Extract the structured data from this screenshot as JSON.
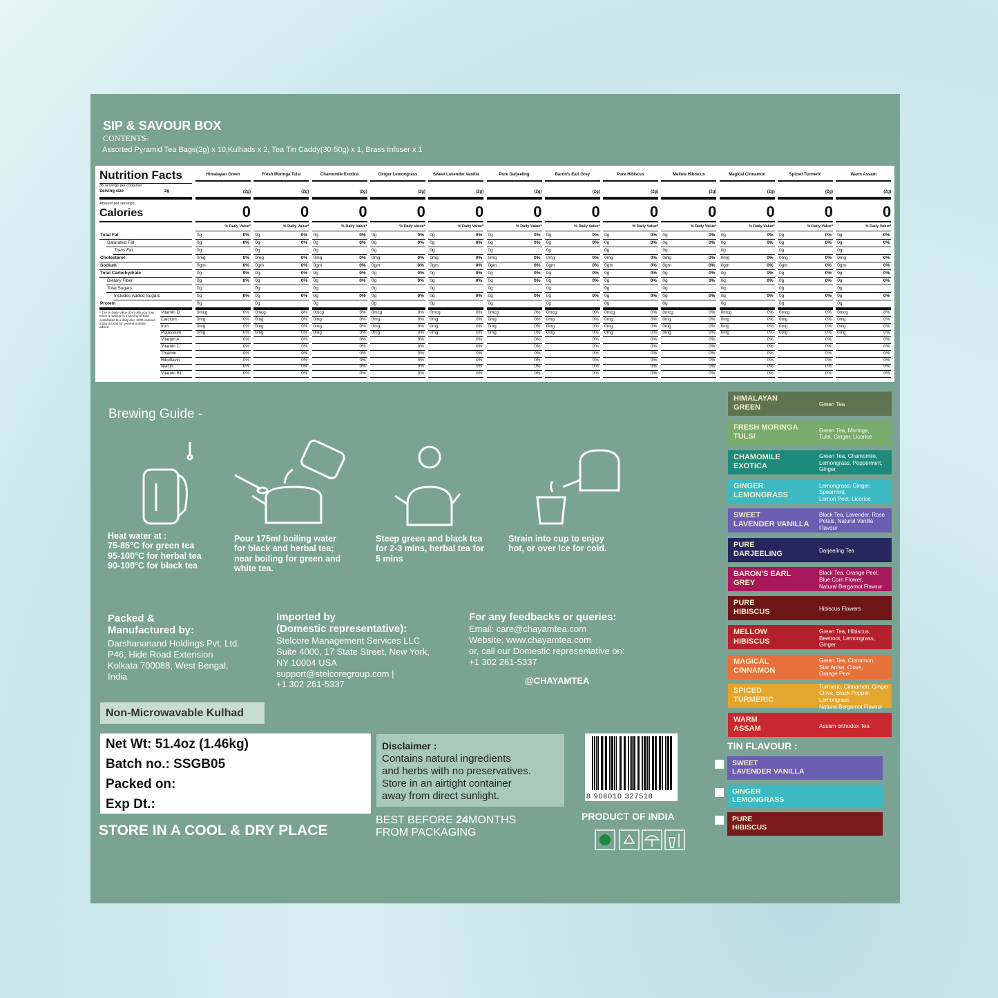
{
  "header": {
    "title": "SIP & SAVOUR BOX",
    "contents_label": "CONTENTS-",
    "contents": "Assorted Pyramid Tea Bags(2g) x 10,Kulhads x 2, Tea Tin Caddy(30-50g) x 1, Brass Infuser x 1"
  },
  "nutrition": {
    "title": "Nutrition Facts",
    "servings": "35 servings per container",
    "serving_size_label": "Serving size",
    "serving_size": "2g",
    "amount_label": "Amount per servings",
    "calories_label": "Calories",
    "dv_header": "% Daily Value*",
    "nutrients": [
      "Total Fat",
      "Saturated Fat",
      "Trans Fat",
      "Cholesterol",
      "Sodium",
      "Total Carbohydrate",
      "Dietary Fiber",
      "Total Sugars",
      "Includes Added Sugars",
      "Protein"
    ],
    "vitamins": [
      "Vitamin D",
      "Calcium",
      "Iron",
      "Potassium",
      "Vitamin A",
      "Vitamin C",
      "Thiamin",
      "Riboflavin",
      "Niacin",
      "Vitamin B1"
    ],
    "footnote": "* The % Daily Value (DV) tells you how much a nutrient in a serving of food contributes to a daily diet. 2000 calories a day is used for general nutrition advice.",
    "columns": [
      {
        "name": "Himalayan Green",
        "serving": "(2g)",
        "calories": 0,
        "amounts": [
          "0g",
          "0g",
          "0g",
          "0mg",
          "0gm",
          "0g",
          "0g",
          "0g",
          "0g",
          "0g"
        ],
        "dv": [
          "0%",
          "0%",
          null,
          "0%",
          "0%",
          "0%",
          "0%",
          null,
          "0%",
          null
        ],
        "vit_amounts": [
          "0mcg",
          "0mg",
          "0mg",
          "0mg",
          null,
          null,
          null,
          null,
          null,
          null
        ],
        "vit_dv": [
          "0%",
          "0%",
          "0%",
          "0%",
          "0%",
          "0%",
          "0%",
          "0%",
          "0%",
          "0%"
        ]
      },
      {
        "name": "Fresh Moringa Tulsi",
        "serving": "(2g)",
        "calories": 0,
        "amounts": [
          "0g",
          "0g",
          "0g",
          "0mg",
          "0gm",
          "0g",
          "0g",
          "0g",
          "0g",
          "0g"
        ],
        "dv": [
          "0%",
          "0%",
          null,
          "0%",
          "0%",
          "0%",
          "0%",
          null,
          "0%",
          null
        ],
        "vit_amounts": [
          "0mcg",
          "0mg",
          "0mg",
          "0mg",
          null,
          null,
          null,
          null,
          null,
          null
        ],
        "vit_dv": [
          "0%",
          "0%",
          "0%",
          "0%",
          "0%",
          "0%",
          "0%",
          "0%",
          "0%",
          "0%"
        ]
      },
      {
        "name": "Chamomile Exotica",
        "serving": "(2g)",
        "calories": 0,
        "amounts": [
          "0g",
          "0g",
          "0g",
          "0mg",
          "0gm",
          "0g",
          "0g",
          "0g",
          "0g",
          "0g"
        ],
        "dv": [
          "0%",
          "0%",
          null,
          "0%",
          "0%",
          "0%",
          "0%",
          null,
          "0%",
          null
        ],
        "vit_amounts": [
          "0mcg",
          "0mg",
          "0mg",
          "0mg",
          null,
          null,
          null,
          null,
          null,
          null
        ],
        "vit_dv": [
          "0%",
          "0%",
          "0%",
          "0%",
          "0%",
          "0%",
          "0%",
          "0%",
          "0%",
          "0%"
        ]
      },
      {
        "name": "Ginger Lemongrass",
        "serving": "(2g)",
        "calories": 0,
        "amounts": [
          "0g",
          "0g",
          "0g",
          "0mg",
          "0gm",
          "0g",
          "0g",
          "0g",
          "0g",
          "0g"
        ],
        "dv": [
          "0%",
          "0%",
          null,
          "0%",
          "0%",
          "0%",
          "0%",
          null,
          "0%",
          null
        ],
        "vit_amounts": [
          "0mcg",
          "0mg",
          "0mg",
          "0mg",
          null,
          null,
          null,
          null,
          null,
          null
        ],
        "vit_dv": [
          "0%",
          "0%",
          "0%",
          "0%",
          "0%",
          "0%",
          "0%",
          "0%",
          "0%",
          "0%"
        ]
      },
      {
        "name": "Sweet Lavender Vanilla",
        "serving": "(2g)",
        "calories": 0,
        "amounts": [
          "0g",
          "0g",
          "0g",
          "0mg",
          "0gm",
          "0g",
          "0g",
          "0g",
          "0g",
          "0g"
        ],
        "dv": [
          "0%",
          "0%",
          null,
          "0%",
          "0%",
          "0%",
          "0%",
          null,
          "0%",
          null
        ],
        "vit_amounts": [
          "0mcg",
          "0mg",
          "0mg",
          "0mg",
          null,
          null,
          null,
          null,
          null,
          null
        ],
        "vit_dv": [
          "0%",
          "0%",
          "0%",
          "0%",
          "0%",
          "0%",
          "0%",
          "0%",
          "0%",
          "0%"
        ]
      },
      {
        "name": "Pure Darjeeling",
        "serving": "(2g)",
        "calories": 0,
        "amounts": [
          "0g",
          "0g",
          "0g",
          "0mg",
          "0gm",
          "0g",
          "0g",
          "0g",
          "0g",
          "0g"
        ],
        "dv": [
          "0%",
          "0%",
          null,
          "0%",
          "0%",
          "0%",
          "0%",
          null,
          "0%",
          null
        ],
        "vit_amounts": [
          "0mcg",
          "0mg",
          "0mg",
          "0mg",
          null,
          null,
          null,
          null,
          null,
          null
        ],
        "vit_dv": [
          "0%",
          "0%",
          "0%",
          "0%",
          "0%",
          "0%",
          "0%",
          "0%",
          "0%",
          "0%"
        ]
      },
      {
        "name": "Baron's Earl Grey",
        "serving": "(2g)",
        "calories": 0,
        "amounts": [
          "0g",
          "0g",
          "0g",
          "0mg",
          "0gm",
          "0g",
          "0g",
          "0g",
          "0g",
          "0g"
        ],
        "dv": [
          "0%",
          "0%",
          null,
          "0%",
          "0%",
          "0%",
          "0%",
          null,
          "0%",
          null
        ],
        "vit_amounts": [
          "0mcg",
          "0mg",
          "0mg",
          "0mg",
          null,
          null,
          null,
          null,
          null,
          null
        ],
        "vit_dv": [
          "0%",
          "0%",
          "0%",
          "0%",
          "0%",
          "0%",
          "0%",
          "0%",
          "0%",
          "0%"
        ]
      },
      {
        "name": "Pure Hibiscus",
        "serving": "(2g)",
        "calories": 0,
        "amounts": [
          "0g",
          "0g",
          "0g",
          "0mg",
          "0gm",
          "0g",
          "0g",
          "0g",
          "0g",
          "0g"
        ],
        "dv": [
          "0%",
          "0%",
          null,
          "0%",
          "0%",
          "0%",
          "0%",
          null,
          "0%",
          null
        ],
        "vit_amounts": [
          "0mcg",
          "0mg",
          "0mg",
          "0mg",
          null,
          null,
          null,
          null,
          null,
          null
        ],
        "vit_dv": [
          "0%",
          "0%",
          "0%",
          "0%",
          "0%",
          "0%",
          "0%",
          "0%",
          "0%",
          "0%"
        ]
      },
      {
        "name": "Mellow Hibiscus",
        "serving": "(2g)",
        "calories": 0,
        "amounts": [
          "0g",
          "0g",
          "0g",
          "0mg",
          "0gm",
          "0g",
          "0g",
          "0g",
          "0g",
          "0g"
        ],
        "dv": [
          "0%",
          "0%",
          null,
          "0%",
          "0%",
          "0%",
          "0%",
          null,
          "0%",
          null
        ],
        "vit_amounts": [
          "0mcg",
          "0mg",
          "0mg",
          "0mg",
          null,
          null,
          null,
          null,
          null,
          null
        ],
        "vit_dv": [
          "0%",
          "0%",
          "0%",
          "0%",
          "0%",
          "0%",
          "0%",
          "0%",
          "0%",
          "0%"
        ]
      },
      {
        "name": "Magical Cinnamon",
        "serving": "(2g)",
        "calories": 0,
        "amounts": [
          "0g",
          "0g",
          "0g",
          "0mg",
          "0gm",
          "0g",
          "0g",
          "0g",
          "0g",
          "0g"
        ],
        "dv": [
          "0%",
          "0%",
          null,
          "0%",
          "0%",
          "0%",
          "0%",
          null,
          "0%",
          null
        ],
        "vit_amounts": [
          "0mcg",
          "0mg",
          "0mg",
          "0mg",
          null,
          null,
          null,
          null,
          null,
          null
        ],
        "vit_dv": [
          "0%",
          "0%",
          "0%",
          "0%",
          "0%",
          "0%",
          "0%",
          "0%",
          "0%",
          "0%"
        ]
      },
      {
        "name": "Spiced Turmeric",
        "serving": "(2g)",
        "calories": 0,
        "amounts": [
          "0g",
          "0g",
          "0g",
          "0mg",
          "0gm",
          "0g",
          "0g",
          "0g",
          "0g",
          "0g"
        ],
        "dv": [
          "0%",
          "0%",
          null,
          "0%",
          "0%",
          "0%",
          "0%",
          null,
          "0%",
          null
        ],
        "vit_amounts": [
          "0mcg",
          "0mg",
          "0mg",
          "0mg",
          null,
          null,
          null,
          null,
          null,
          null
        ],
        "vit_dv": [
          "0%",
          "0%",
          "0%",
          "0%",
          "0%",
          "0%",
          "0%",
          "0%",
          "0%",
          "0%"
        ]
      },
      {
        "name": "Warm Assam",
        "serving": "(2g)",
        "calories": 0,
        "amounts": [
          "0g",
          "0g",
          "0g",
          "0mg",
          "0gm",
          "0g",
          "0g",
          "0g",
          "0g",
          "0g"
        ],
        "dv": [
          "0%",
          "0%",
          null,
          "0%",
          "0%",
          "0%",
          "0%",
          null,
          "0%",
          null
        ],
        "vit_amounts": [
          "0mcg",
          "0mg",
          "0mg",
          "0mg",
          null,
          null,
          null,
          null,
          null,
          null
        ],
        "vit_dv": [
          "0%",
          "0%",
          "0%",
          "0%",
          "0%",
          "0%",
          "0%",
          "0%",
          "0%",
          "0%"
        ]
      }
    ]
  },
  "brewing": {
    "title": "Brewing Guide -",
    "steps": [
      "Heat water at :\n75-85°C for green tea\n95-100°C for herbal tea\n90-100°C for black tea",
      "Pour 175ml boiling water\nfor black and herbal tea;\nnear boiling for green and\nwhite tea.",
      "Steep green and black tea\nfor 2-3 mins, herbal tea for\n5 mins",
      "Strain into cup to enjoy\nhot, or over ice for cold."
    ]
  },
  "info": {
    "packed": {
      "heading": "Packed &\nManufactured by:",
      "text": "Darshananand Holdings Pvt. Ltd.\nP46, Hide Road Extension\nKolkata 700088, West Bengal,\nIndia"
    },
    "imported": {
      "heading": "Imported by\n(Domestic representative):",
      "text": "Stelcore Management Services LLC\nSuite 4000, 17 State Street, New York,\nNY 10004 USA\nsupport@stelcoregroup.com |\n+1 302 261-5337"
    },
    "feedback": {
      "heading": "For any feedbacks or queries:",
      "text": "Email: care@chayamtea.com\nWebsite: www.chayamtea.com\nor, call our Domestic representative on:\n +1 302 261-5337"
    },
    "handle": "@CHAYAMTEA"
  },
  "labels": {
    "kulhad": "Non-Microwavable Kulhad",
    "store": "STORE IN A COOL & DRY PLACE",
    "origin": "PRODUCT OF INDIA"
  },
  "batch": {
    "net_wt": "Net Wt: 51.4oz (1.46kg)",
    "batch_no": "Batch no.: SSGB05",
    "packed_on": "Packed on:",
    "exp_dt": "Exp Dt.:"
  },
  "disclaimer": {
    "heading": "Disclaimer :",
    "text": "Contains natural ingredients\nand herbs with no preservatives.\nStore in an airtight container\naway from direct sunlight."
  },
  "best_before": {
    "prefix": "BEST BEFORE",
    "months": 24,
    "suffix": "MONTHS",
    "line2": "FROM PACKAGING"
  },
  "barcode": "8 908010 327518",
  "flavors": [
    {
      "name": "HIMALAYAN\nGREEN",
      "description": "Green Tea",
      "color": "#5e7350"
    },
    {
      "name": "FRESH MORINGA\nTULSI",
      "description": "Green Tea, Moringa,\nTulsi, Ginger, Licorice",
      "color": "#79ab6c"
    },
    {
      "name": "CHAMOMILE\nEXOTICA",
      "description": "Green Tea, Chamomile,\nLemongrass, Peppermint,\nGinger",
      "color": "#1e8a7c"
    },
    {
      "name": "GINGER\nLEMONGRASS",
      "description": "Lemongrass, Ginger,\nSpearmint,\nLemon Peel, Licorice",
      "color": "#3cb9c2"
    },
    {
      "name": "SWEET\nLAVENDER VANILLA",
      "description": "Black Tea, Lavender, Rose\nPetals, Natural Vanilla\nFlavour",
      "color": "#6a5db2"
    },
    {
      "name": "PURE\nDARJEELING",
      "description": "Darjeeling Tea",
      "color": "#25265e"
    },
    {
      "name": "BARON'S EARL\nGREY",
      "description": "Black Tea, Orange Peel,\nBlue Corn Flower,\nNatural Bergamot Flavour",
      "color": "#a8195c"
    },
    {
      "name": "PURE\nHIBISCUS",
      "description": "Hibiscus Flowers",
      "color": "#6e1516"
    },
    {
      "name": "MELLOW\nHIBISCUS",
      "description": "Green Tea, Hibiscus,\nBeetroot, Lemongrass,\nGinger",
      "color": "#b4202b"
    },
    {
      "name": "MAGICAL\nCINNAMON",
      "description": "Green Tea, Cinnamon,\nStar Anise, Clove,\nOrange Peel",
      "color": "#e8703b"
    },
    {
      "name": "SPICED\nTURMERIC",
      "description": "Turmeric, Cinnamon, Ginger\nClove, Black Pepper, Lemongrass\nNatural Bergamot Flavour",
      "color": "#e3a52b"
    },
    {
      "name": "WARM\nASSAM",
      "description": "Assam orthodox Tea",
      "color": "#c9282f"
    }
  ],
  "tin": {
    "heading": "TIN FLAVOUR :",
    "options": [
      {
        "name": "SWEET\nLAVENDER VANILLA",
        "color": "#6a5db2"
      },
      {
        "name": "GINGER\nLEMONGRASS",
        "color": "#3cb9c2"
      },
      {
        "name": "PURE\nHIBISCUS",
        "color": "#7a1a1c"
      }
    ]
  }
}
